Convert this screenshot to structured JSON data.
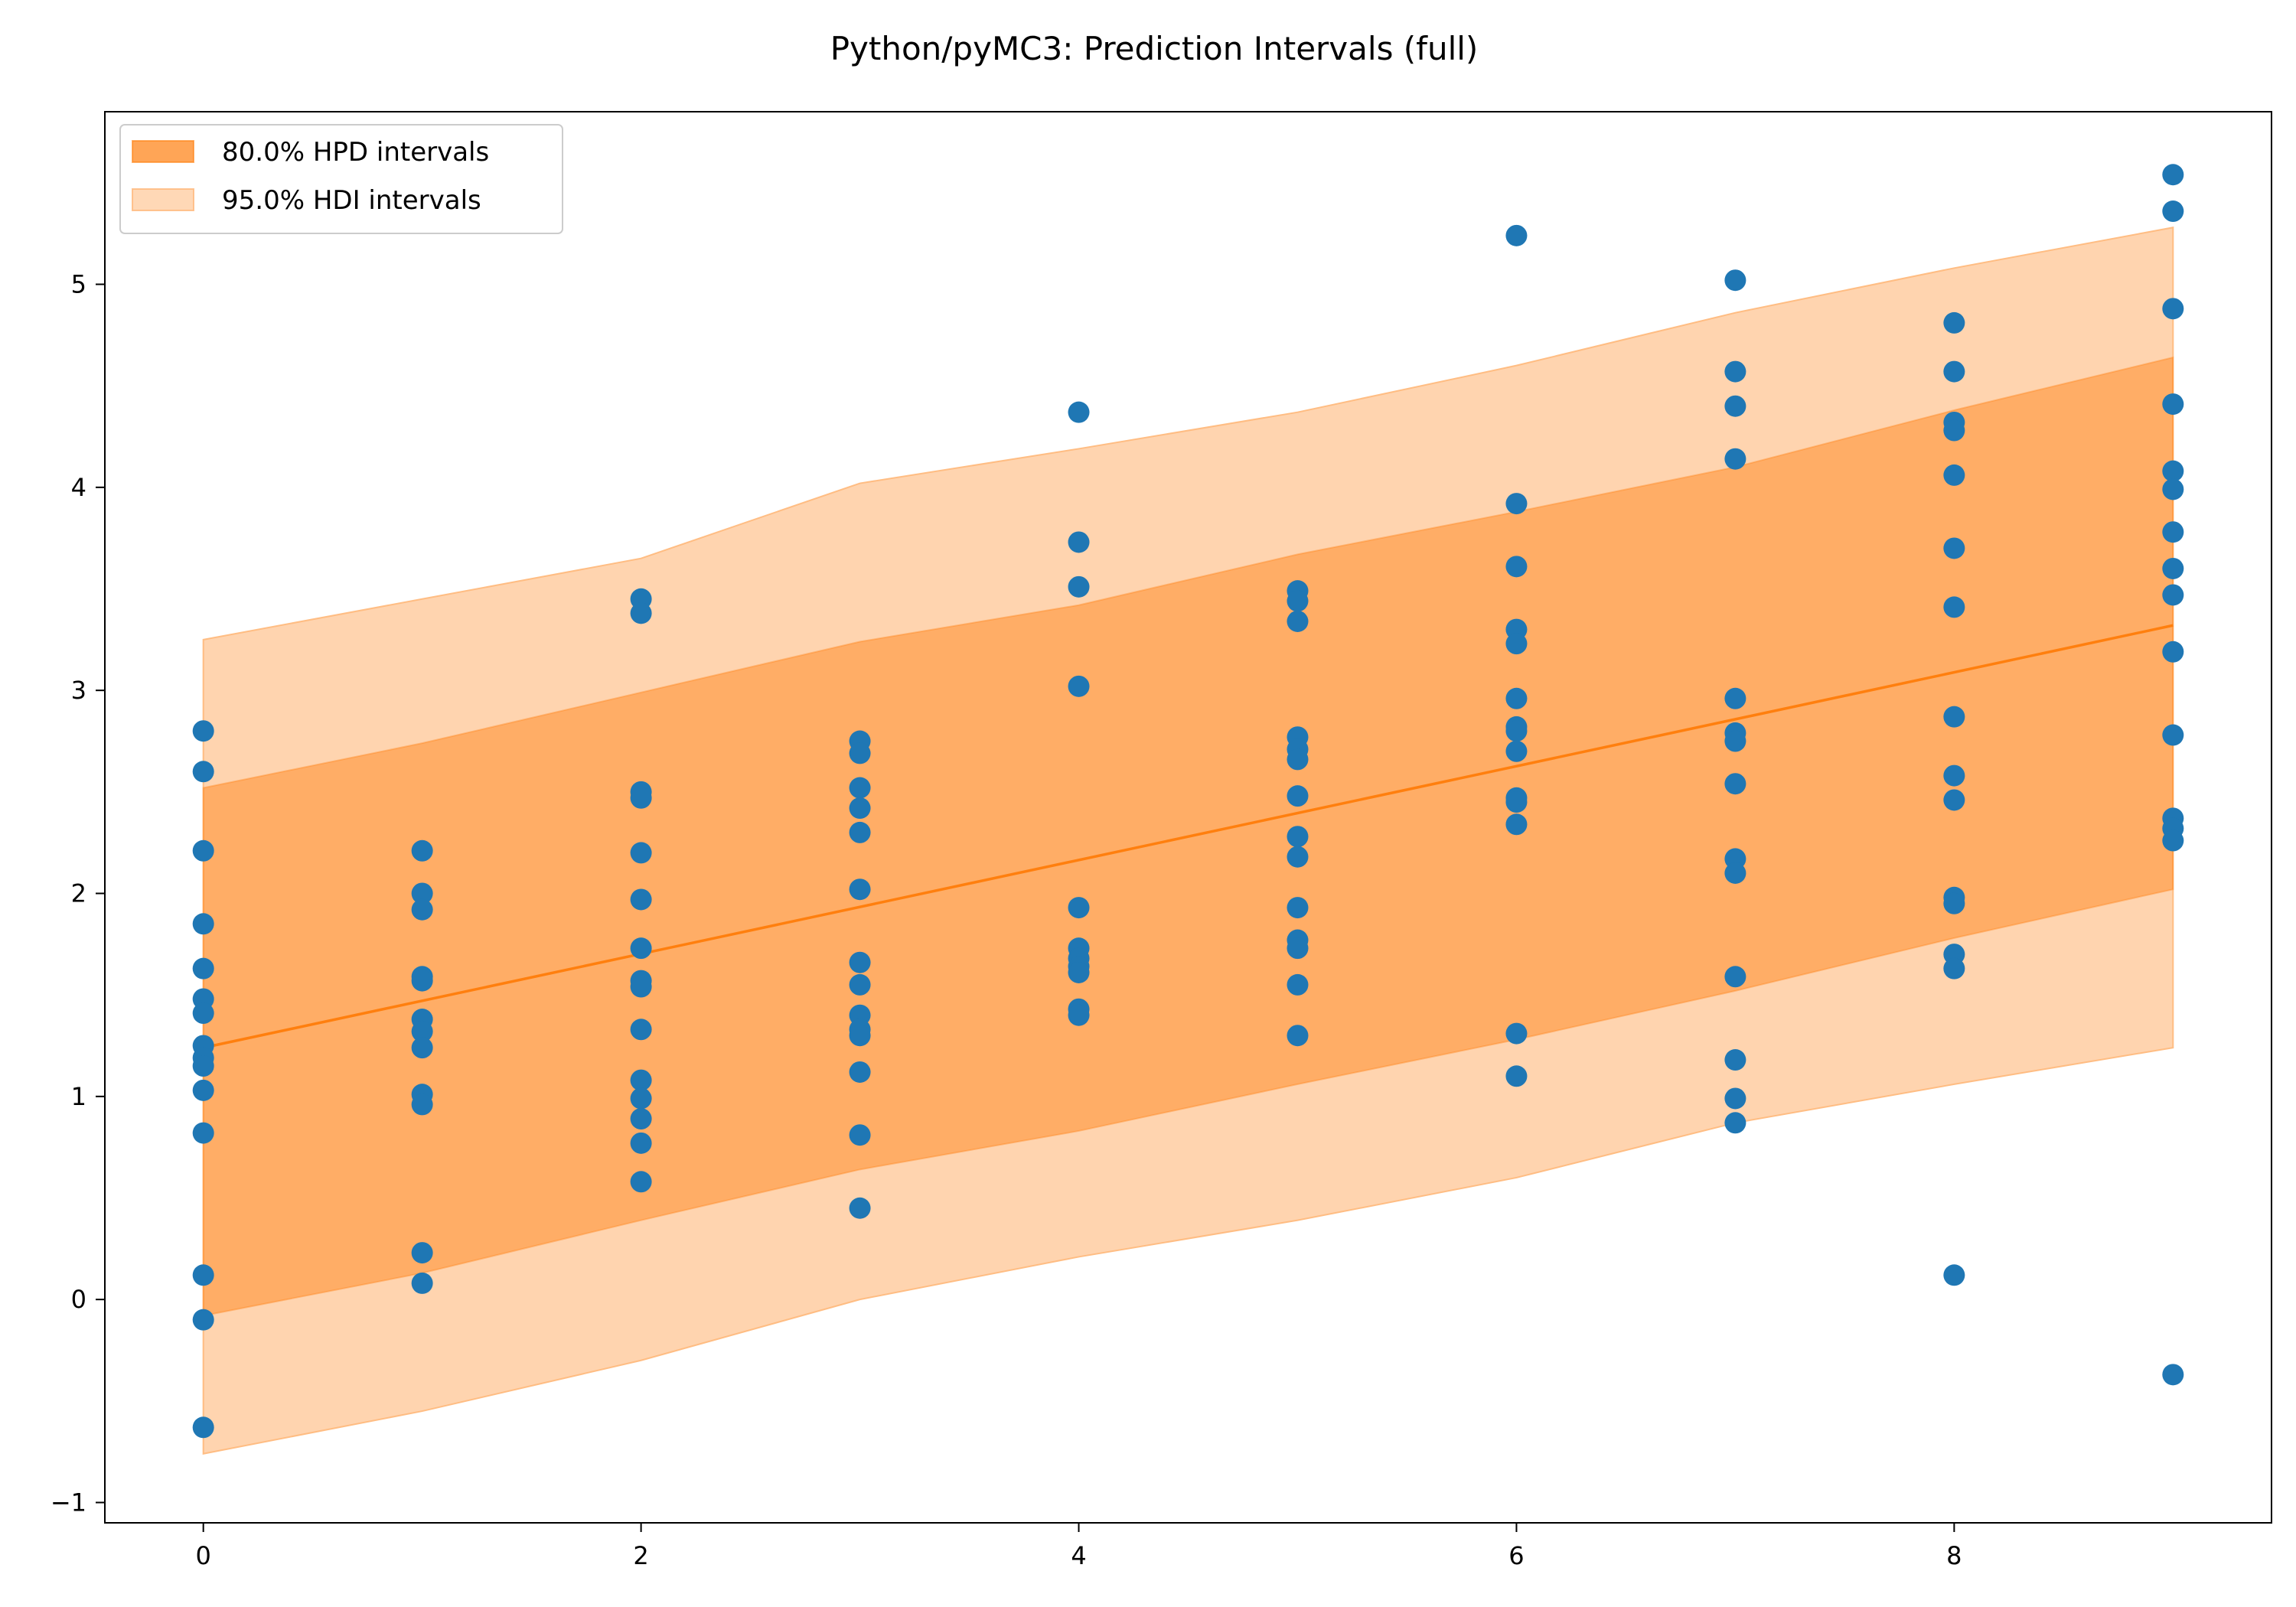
{
  "chart_data": {
    "type": "scatter",
    "title": "Python/pyMC3: Prediction Intervals (full)",
    "xlabel": "",
    "ylabel": "",
    "xlim": [
      -0.45,
      9.45
    ],
    "ylim": [
      -1.1,
      5.85
    ],
    "x_ticks": [
      0,
      2,
      4,
      6,
      8
    ],
    "y_ticks": [
      -1,
      0,
      1,
      2,
      3,
      4,
      5
    ],
    "grid": false,
    "legend_position": "top-left",
    "colors": {
      "points": "#1f77b4",
      "line": "#ff7f0e",
      "band_80": "#ff7f0e",
      "band_95": "#ffb87a"
    },
    "legend": [
      {
        "label": "80.0% HPD intervals",
        "series": "band_80"
      },
      {
        "label": "95.0% HDI intervals",
        "series": "band_95"
      }
    ],
    "mean_line": {
      "x": [
        0,
        9
      ],
      "y": [
        1.24,
        3.32
      ]
    },
    "band_95": {
      "x": [
        0,
        1,
        2,
        3,
        4,
        5,
        6,
        7,
        8,
        9
      ],
      "lower": [
        -0.76,
        -0.55,
        -0.3,
        0.0,
        0.21,
        0.39,
        0.6,
        0.87,
        1.06,
        1.24
      ],
      "upper": [
        3.25,
        3.45,
        3.65,
        4.02,
        4.19,
        4.37,
        4.6,
        4.86,
        5.08,
        5.28
      ]
    },
    "band_80": {
      "x": [
        0,
        1,
        2,
        3,
        4,
        5,
        6,
        7,
        8,
        9
      ],
      "lower": [
        -0.08,
        0.13,
        0.39,
        0.64,
        0.83,
        1.06,
        1.28,
        1.52,
        1.78,
        2.02
      ],
      "upper": [
        2.52,
        2.74,
        2.99,
        3.24,
        3.42,
        3.67,
        3.88,
        4.1,
        4.38,
        4.64
      ]
    },
    "points": [
      {
        "x": 0,
        "y": [
          2.8,
          2.6,
          2.21,
          1.85,
          1.63,
          1.48,
          1.41,
          1.25,
          1.19,
          1.15,
          1.03,
          0.82,
          0.12,
          -0.1,
          -0.63
        ]
      },
      {
        "x": 1,
        "y": [
          2.21,
          2.0,
          1.92,
          1.59,
          1.57,
          1.38,
          1.32,
          1.24,
          1.01,
          0.96,
          0.23,
          0.08
        ]
      },
      {
        "x": 2,
        "y": [
          3.45,
          3.38,
          2.5,
          2.47,
          2.2,
          1.97,
          1.73,
          1.57,
          1.54,
          1.33,
          1.08,
          0.99,
          0.89,
          0.77,
          0.58
        ]
      },
      {
        "x": 3,
        "y": [
          2.75,
          2.69,
          2.52,
          2.42,
          2.3,
          2.02,
          1.66,
          1.55,
          1.4,
          1.33,
          1.3,
          1.12,
          0.81,
          0.45
        ]
      },
      {
        "x": 4,
        "y": [
          4.37,
          3.73,
          3.51,
          3.02,
          1.93,
          1.73,
          1.68,
          1.64,
          1.61,
          1.43,
          1.4
        ]
      },
      {
        "x": 5,
        "y": [
          3.49,
          3.44,
          3.34,
          2.77,
          2.71,
          2.66,
          2.48,
          2.28,
          2.18,
          1.93,
          1.77,
          1.73,
          1.55,
          1.3
        ]
      },
      {
        "x": 6,
        "y": [
          5.24,
          3.92,
          3.61,
          3.3,
          3.23,
          2.96,
          2.82,
          2.8,
          2.7,
          2.47,
          2.45,
          2.34,
          1.31,
          1.1
        ]
      },
      {
        "x": 7,
        "y": [
          5.02,
          4.57,
          4.4,
          4.14,
          2.96,
          2.79,
          2.75,
          2.54,
          2.17,
          2.1,
          1.59,
          1.18,
          0.99,
          0.87
        ]
      },
      {
        "x": 8,
        "y": [
          4.81,
          4.57,
          4.32,
          4.28,
          4.06,
          3.7,
          3.41,
          2.87,
          2.58,
          2.46,
          1.98,
          1.95,
          1.7,
          1.63,
          0.12
        ]
      },
      {
        "x": 9,
        "y": [
          5.54,
          5.36,
          4.88,
          4.41,
          4.08,
          3.99,
          3.78,
          3.6,
          3.47,
          3.19,
          2.78,
          2.37,
          2.32,
          2.26,
          -0.37
        ]
      }
    ]
  }
}
